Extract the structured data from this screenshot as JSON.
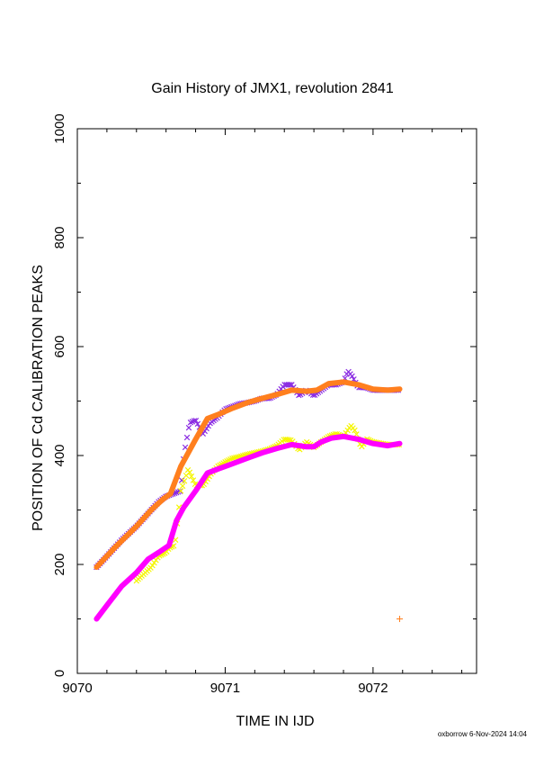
{
  "page": {
    "footer": "oxborrow 6-Nov-2024 14:04"
  },
  "colors": {
    "purple": "#8a2be2",
    "orange": "#ff7f1e",
    "yellow": "#f5f500",
    "magenta": "#ff00ff",
    "axis": "#000000"
  },
  "chart_data": {
    "type": "line",
    "title": "Gain History of JMX1, revolution 2841",
    "xlabel": "TIME IN IJD",
    "ylabel": "POSITION OF Cd CALIBRATION PEAKS",
    "xlim": [
      9070,
      9072.7
    ],
    "ylim": [
      0,
      1000
    ],
    "x_ticks": [
      9070,
      9071,
      9072
    ],
    "x_tick_labels": [
      "9070",
      "9071",
      "9072"
    ],
    "y_ticks": [
      0,
      200,
      400,
      600,
      800,
      1000
    ],
    "y_tick_labels": [
      "0",
      "200",
      "400",
      "600",
      "800",
      "1000"
    ],
    "grid": false,
    "legend": "none",
    "series": [
      {
        "style": "cross-markers",
        "color": "#8a2be2",
        "x": [
          9070.13,
          9070.2,
          9070.3,
          9070.4,
          9070.5,
          9070.55,
          9070.6,
          9070.65,
          9070.7,
          9070.72,
          9070.76,
          9070.8,
          9070.85,
          9070.9,
          9070.95,
          9071.0,
          9071.05,
          9071.1,
          9071.15,
          9071.2,
          9071.25,
          9071.3,
          9071.35,
          9071.4,
          9071.45,
          9071.5,
          9071.55,
          9071.6,
          9071.65,
          9071.7,
          9071.75,
          9071.8,
          9071.83,
          9071.86,
          9071.9,
          9071.95,
          9072.0,
          9072.05,
          9072.1,
          9072.15,
          9072.18
        ],
        "y": [
          195,
          215,
          245,
          270,
          300,
          315,
          325,
          330,
          335,
          400,
          460,
          465,
          440,
          460,
          470,
          485,
          490,
          495,
          497,
          500,
          505,
          505,
          512,
          530,
          530,
          510,
          520,
          510,
          520,
          530,
          530,
          535,
          555,
          545,
          525,
          525,
          520,
          520,
          520,
          520,
          520
        ]
      },
      {
        "style": "thick-line",
        "color": "#ff7f1e",
        "x": [
          9070.13,
          9070.25,
          9070.4,
          9070.5,
          9070.58,
          9070.63,
          9070.7,
          9070.8,
          9070.88,
          9070.95,
          9071.05,
          9071.15,
          9071.25,
          9071.35,
          9071.45,
          9071.55,
          9071.62,
          9071.7,
          9071.8,
          9071.9,
          9072.0,
          9072.1,
          9072.18
        ],
        "y": [
          195,
          230,
          270,
          300,
          320,
          330,
          380,
          430,
          468,
          475,
          487,
          497,
          505,
          512,
          520,
          518,
          520,
          532,
          535,
          530,
          522,
          520,
          522
        ]
      },
      {
        "style": "cross-markers",
        "color": "#f5f500",
        "x": [
          9070.4,
          9070.5,
          9070.55,
          9070.6,
          9070.62,
          9070.66,
          9070.7,
          9070.72,
          9070.75,
          9070.8,
          9070.85,
          9070.9,
          9070.95,
          9071.0,
          9071.05,
          9071.1,
          9071.15,
          9071.2,
          9071.25,
          9071.3,
          9071.35,
          9071.4,
          9071.45,
          9071.5,
          9071.55,
          9071.6,
          9071.65,
          9071.7,
          9071.75,
          9071.8,
          9071.85,
          9071.88,
          9071.92,
          9071.96,
          9072.0,
          9072.1,
          9072.18
        ],
        "y": [
          170,
          195,
          215,
          222,
          230,
          235,
          335,
          350,
          375,
          345,
          345,
          365,
          380,
          388,
          395,
          398,
          402,
          405,
          408,
          412,
          418,
          430,
          428,
          410,
          425,
          415,
          425,
          435,
          440,
          435,
          455,
          445,
          415,
          430,
          425,
          420,
          420
        ]
      },
      {
        "style": "thick-line",
        "color": "#ff00ff",
        "x": [
          9070.13,
          9070.2,
          9070.3,
          9070.4,
          9070.48,
          9070.55,
          9070.62,
          9070.67,
          9070.72,
          9070.8,
          9070.88,
          9070.95,
          9071.05,
          9071.15,
          9071.25,
          9071.35,
          9071.45,
          9071.55,
          9071.6,
          9071.65,
          9071.72,
          9071.8,
          9071.9,
          9072.0,
          9072.1,
          9072.18
        ],
        "y": [
          100,
          125,
          160,
          185,
          210,
          222,
          235,
          280,
          305,
          335,
          368,
          375,
          385,
          395,
          405,
          413,
          420,
          416,
          416,
          425,
          432,
          435,
          430,
          422,
          418,
          422
        ]
      },
      {
        "style": "single-plus",
        "color": "#ff7f1e",
        "x": [
          9072.18
        ],
        "y": [
          100
        ]
      }
    ]
  }
}
